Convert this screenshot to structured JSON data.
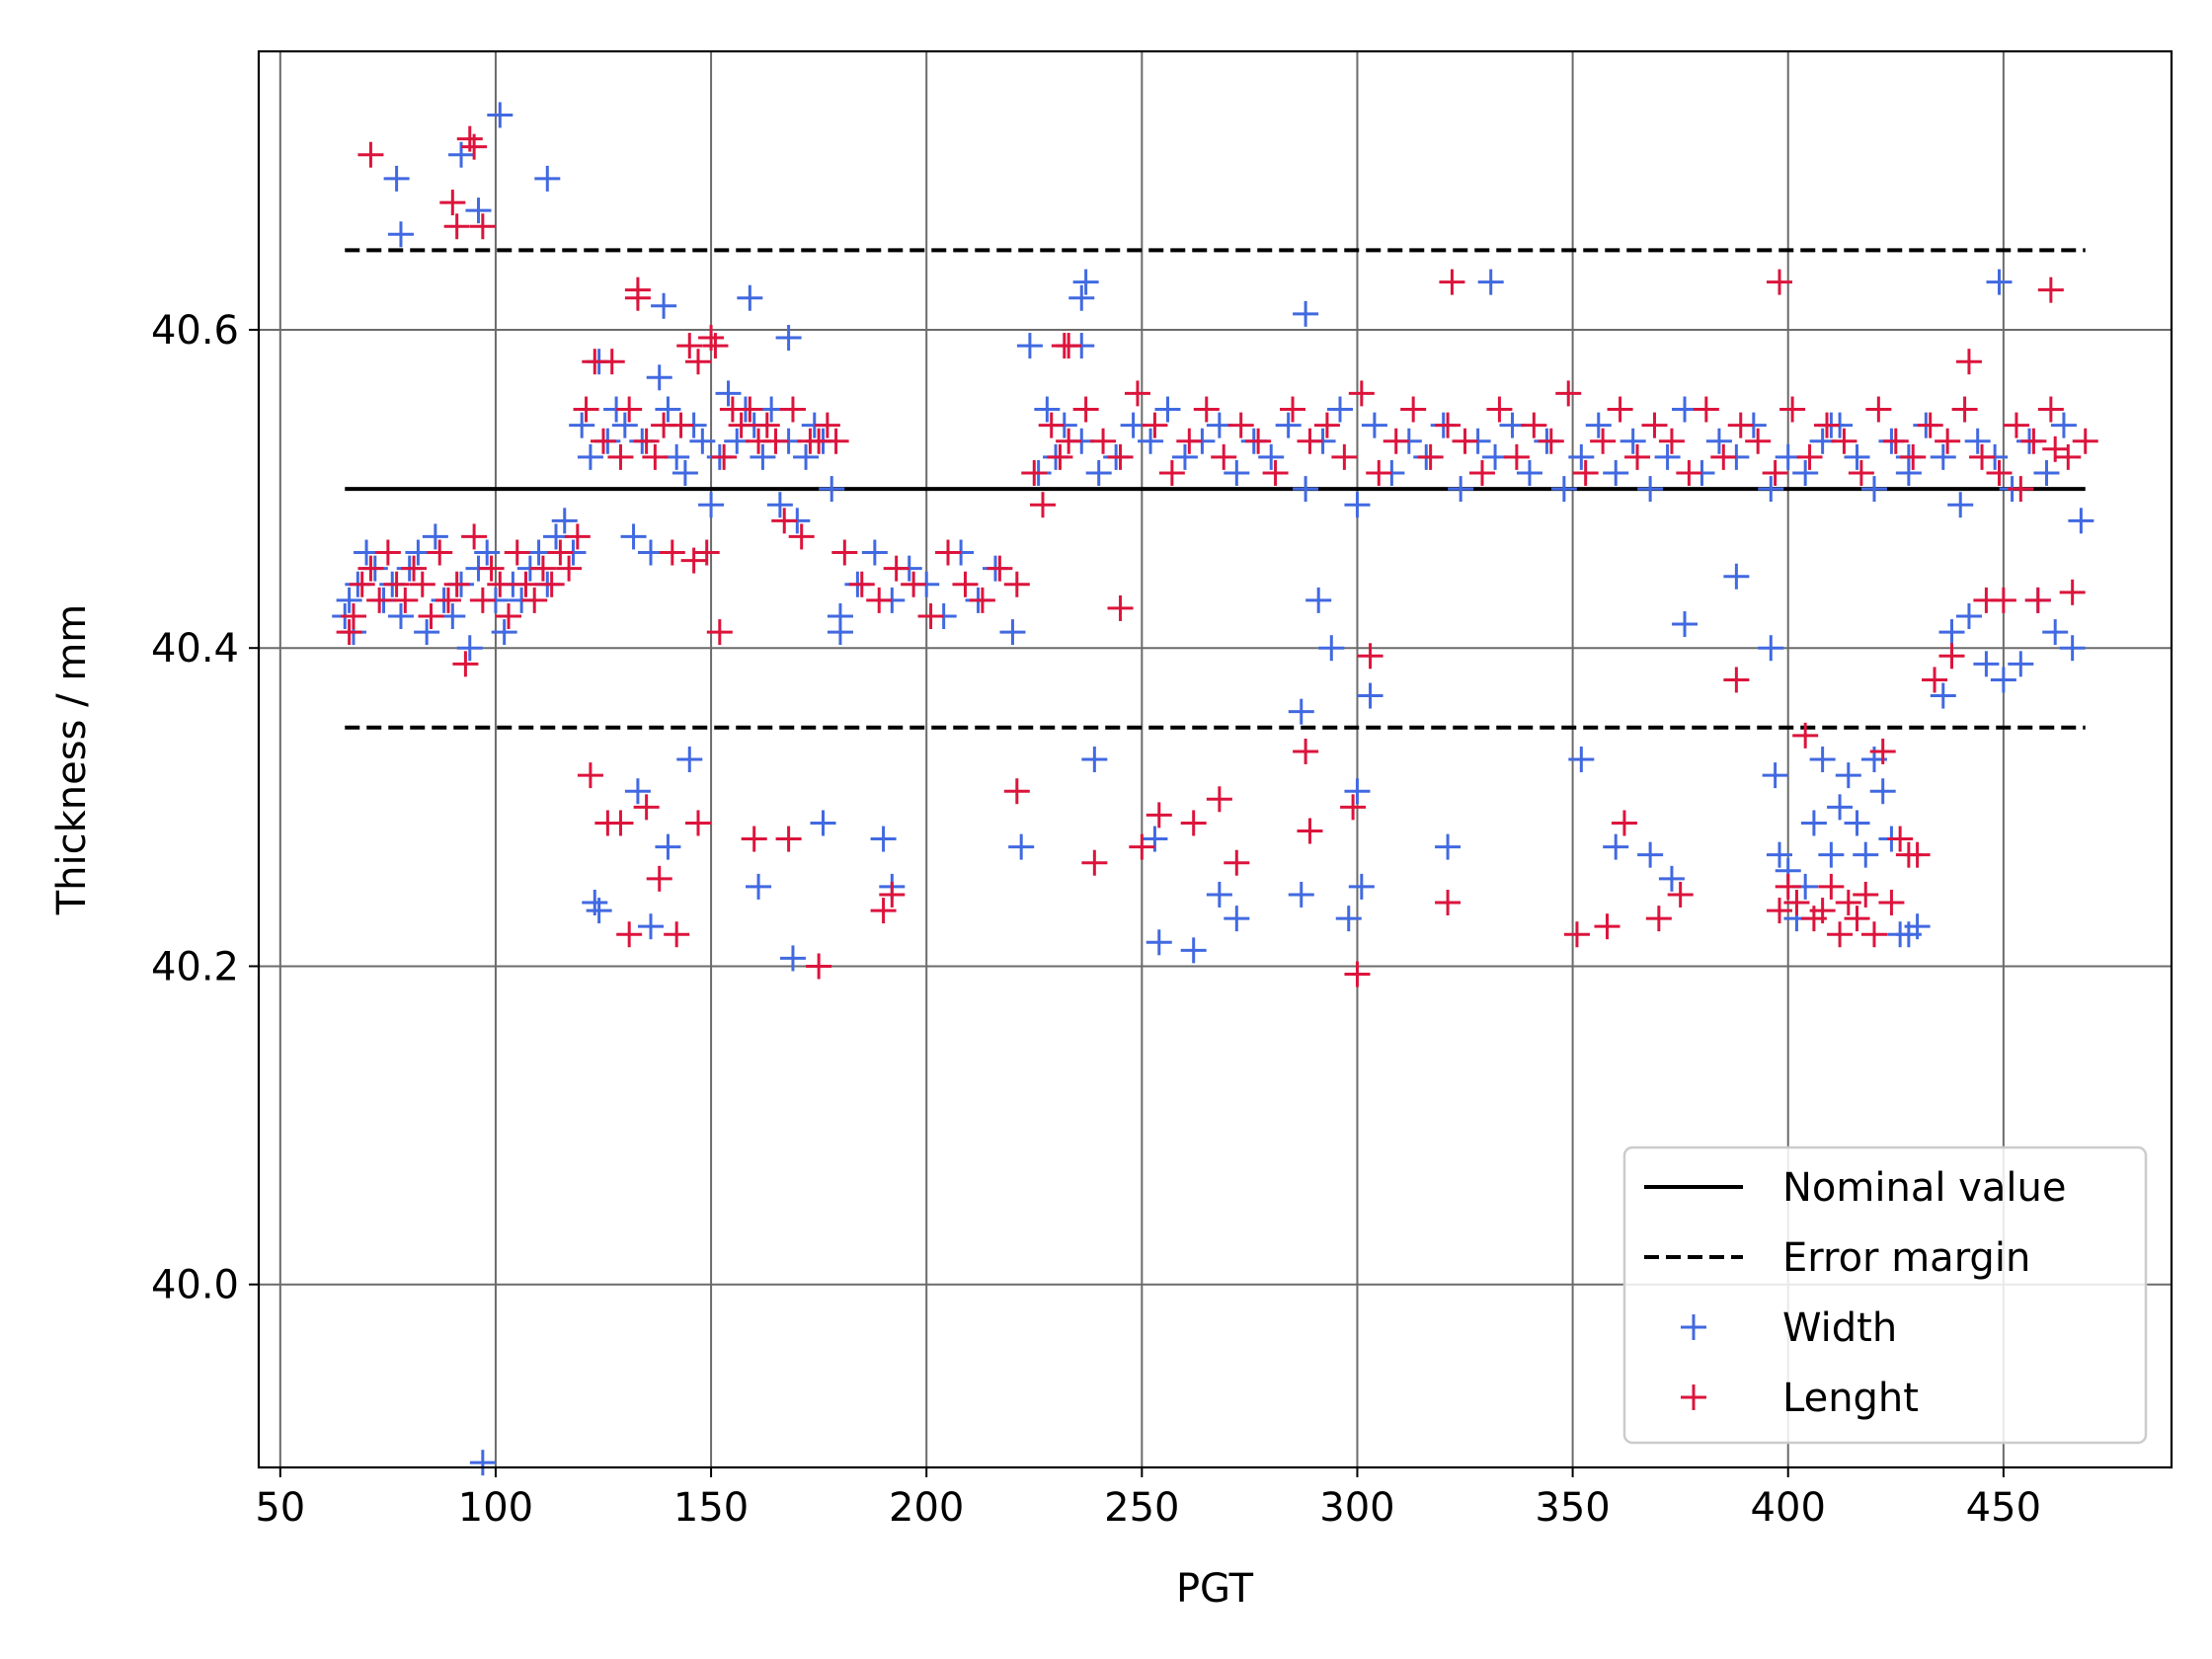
{
  "chart_data": {
    "type": "scatter",
    "title": "",
    "xlabel": "PGT",
    "ylabel": "Thickness / mm",
    "xlim": [
      45,
      489
    ],
    "ylim": [
      39.885,
      40.775
    ],
    "xticks": [
      50,
      100,
      150,
      200,
      250,
      300,
      350,
      400,
      450
    ],
    "xtick_labels": [
      "50",
      "100",
      "150",
      "200",
      "250",
      "300",
      "350",
      "400",
      "450"
    ],
    "yticks": [
      40.0,
      40.2,
      40.4,
      40.6
    ],
    "ytick_labels": [
      "40.0",
      "40.2",
      "40.4",
      "40.6"
    ],
    "grid": true,
    "legend_position": "lower-right",
    "lines": [
      {
        "name": "Nominal value",
        "style": "solid",
        "color": "#000000",
        "x": [
          65,
          469
        ],
        "y": [
          40.5,
          40.5
        ]
      },
      {
        "name": "Error margin",
        "style": "dashed",
        "color": "#000000",
        "x": [
          65,
          469
        ],
        "y": [
          40.65,
          40.65
        ]
      },
      {
        "name": "",
        "style": "dashed",
        "color": "#000000",
        "x": [
          65,
          469
        ],
        "y": [
          40.35,
          40.35
        ]
      }
    ],
    "series": [
      {
        "name": "Width",
        "marker": "+",
        "color": "#4169e1",
        "x": [
          65,
          66,
          67,
          68,
          70,
          72,
          74,
          76,
          78,
          80,
          82,
          84,
          86,
          88,
          90,
          92,
          94,
          96,
          98,
          100,
          102,
          104,
          106,
          108,
          110,
          112,
          114,
          116,
          118,
          77,
          78,
          92,
          96,
          101,
          112,
          97,
          120,
          122,
          124,
          126,
          128,
          130,
          132,
          134,
          136,
          138,
          140,
          142,
          144,
          146,
          148,
          150,
          152,
          154,
          156,
          158,
          160,
          162,
          164,
          166,
          168,
          170,
          172,
          174,
          176,
          178,
          139,
          159,
          168,
          124,
          136,
          140,
          145,
          123,
          133,
          161,
          169,
          176,
          180,
          184,
          188,
          192,
          196,
          200,
          204,
          208,
          212,
          216,
          220,
          180,
          190,
          192,
          222,
          224,
          226,
          228,
          230,
          232,
          236,
          240,
          244,
          248,
          252,
          256,
          260,
          264,
          268,
          272,
          276,
          280,
          284,
          288,
          292,
          296,
          300,
          304,
          308,
          312,
          316,
          320,
          324,
          328,
          332,
          336,
          340,
          344,
          348,
          352,
          356,
          360,
          364,
          368,
          372,
          376,
          380,
          384,
          388,
          392,
          396,
          400,
          404,
          408,
          412,
          416,
          420,
          424,
          428,
          432,
          436,
          440,
          444,
          448,
          452,
          456,
          460,
          464,
          468,
          236,
          237,
          288,
          331,
          396,
          449,
          236,
          291,
          294,
          303,
          287,
          300,
          239,
          262,
          254,
          253,
          268,
          272,
          287,
          298,
          301,
          321,
          352,
          360,
          368,
          373,
          398,
          400,
          402,
          404,
          406,
          408,
          410,
          412,
          414,
          416,
          418,
          420,
          422,
          424,
          426,
          428,
          430,
          436,
          438,
          442,
          446,
          450,
          454,
          458,
          462,
          466,
          397,
          388,
          376,
          410,
          428
        ],
        "y": [
          40.42,
          40.43,
          40.41,
          40.44,
          40.46,
          40.45,
          40.43,
          40.44,
          40.42,
          40.45,
          40.46,
          40.41,
          40.47,
          40.43,
          40.42,
          40.44,
          40.4,
          40.45,
          40.46,
          40.43,
          40.41,
          40.44,
          40.43,
          40.45,
          40.46,
          40.44,
          40.47,
          40.48,
          40.46,
          40.695,
          40.66,
          40.71,
          40.675,
          40.735,
          40.695,
          39.888,
          40.54,
          40.52,
          40.58,
          40.53,
          40.55,
          40.54,
          40.47,
          40.53,
          40.46,
          40.57,
          40.55,
          40.52,
          40.51,
          40.54,
          40.53,
          40.49,
          40.52,
          40.56,
          40.53,
          40.55,
          40.54,
          40.52,
          40.55,
          40.49,
          40.53,
          40.48,
          40.52,
          40.54,
          40.53,
          40.5,
          40.615,
          40.62,
          40.595,
          40.235,
          40.225,
          40.275,
          40.33,
          40.24,
          40.31,
          40.25,
          40.205,
          40.29,
          40.42,
          40.44,
          40.46,
          40.43,
          40.45,
          40.44,
          40.42,
          40.46,
          40.43,
          40.45,
          40.41,
          40.41,
          40.28,
          40.25,
          40.275,
          40.59,
          40.51,
          40.55,
          40.52,
          40.54,
          40.53,
          40.51,
          40.52,
          40.54,
          40.53,
          40.55,
          40.52,
          40.53,
          40.54,
          40.51,
          40.53,
          40.52,
          40.54,
          40.5,
          40.53,
          40.55,
          40.49,
          40.54,
          40.51,
          40.53,
          40.52,
          40.54,
          40.5,
          40.53,
          40.52,
          40.54,
          40.51,
          40.53,
          40.5,
          40.52,
          40.54,
          40.51,
          40.53,
          40.5,
          40.52,
          40.55,
          40.51,
          40.53,
          40.52,
          40.54,
          40.5,
          40.52,
          40.51,
          40.53,
          40.54,
          40.52,
          40.5,
          40.53,
          40.51,
          40.54,
          40.52,
          40.49,
          40.53,
          40.52,
          40.5,
          40.53,
          40.51,
          40.54,
          40.48,
          40.62,
          40.63,
          40.61,
          40.63,
          40.4,
          40.63,
          40.59,
          40.43,
          40.4,
          40.37,
          40.36,
          40.31,
          40.33,
          40.21,
          40.215,
          40.28,
          40.245,
          40.23,
          40.245,
          40.23,
          40.25,
          40.275,
          40.33,
          40.275,
          40.27,
          40.255,
          40.27,
          40.26,
          40.23,
          40.25,
          40.29,
          40.33,
          40.27,
          40.3,
          40.32,
          40.29,
          40.27,
          40.33,
          40.31,
          40.28,
          40.22,
          40.22,
          40.225,
          40.37,
          40.41,
          40.42,
          40.39,
          40.38,
          40.39,
          40.43,
          40.41,
          40.4,
          40.32,
          40.445,
          40.415,
          40.54,
          40.52
        ]
      },
      {
        "name": "Lenght",
        "marker": "+",
        "color": "#dc143c",
        "x": [
          66,
          67,
          69,
          71,
          73,
          75,
          77,
          79,
          81,
          83,
          85,
          87,
          89,
          91,
          93,
          95,
          97,
          99,
          101,
          103,
          105,
          107,
          109,
          111,
          113,
          115,
          117,
          119,
          71,
          90,
          91,
          95,
          97,
          94,
          121,
          123,
          125,
          127,
          129,
          131,
          133,
          135,
          137,
          139,
          141,
          143,
          145,
          147,
          149,
          151,
          153,
          155,
          157,
          159,
          161,
          163,
          165,
          167,
          169,
          171,
          173,
          175,
          177,
          179,
          133,
          150,
          146,
          152,
          122,
          126,
          129,
          131,
          135,
          138,
          142,
          147,
          160,
          168,
          175,
          190,
          192,
          181,
          185,
          189,
          193,
          197,
          201,
          205,
          209,
          213,
          217,
          221,
          221,
          225,
          227,
          229,
          231,
          233,
          237,
          241,
          245,
          249,
          253,
          257,
          261,
          265,
          269,
          273,
          277,
          281,
          285,
          289,
          293,
          297,
          301,
          305,
          309,
          313,
          317,
          321,
          325,
          329,
          333,
          337,
          341,
          345,
          349,
          353,
          357,
          361,
          365,
          369,
          373,
          377,
          381,
          385,
          389,
          393,
          397,
          401,
          405,
          409,
          413,
          417,
          421,
          425,
          429,
          433,
          437,
          441,
          445,
          449,
          453,
          457,
          461,
          465,
          469,
          322,
          398,
          461,
          232,
          233,
          288,
          303,
          245,
          239,
          250,
          254,
          262,
          268,
          272,
          289,
          299,
          300,
          321,
          351,
          358,
          362,
          370,
          375,
          388,
          398,
          400,
          402,
          404,
          406,
          408,
          410,
          412,
          414,
          416,
          418,
          420,
          422,
          424,
          426,
          428,
          430,
          434,
          438,
          442,
          446,
          450,
          454,
          458,
          462,
          466
        ],
        "y": [
          40.41,
          40.42,
          40.44,
          40.45,
          40.43,
          40.46,
          40.44,
          40.43,
          40.45,
          40.44,
          40.42,
          40.46,
          40.43,
          40.44,
          40.39,
          40.47,
          40.43,
          40.45,
          40.44,
          40.42,
          40.46,
          40.44,
          40.43,
          40.45,
          40.44,
          40.46,
          40.45,
          40.47,
          40.71,
          40.68,
          40.665,
          40.715,
          40.665,
          40.72,
          40.55,
          40.58,
          40.53,
          40.58,
          40.52,
          40.55,
          40.62,
          40.53,
          40.52,
          40.54,
          40.46,
          40.54,
          40.59,
          40.58,
          40.46,
          40.59,
          40.52,
          40.55,
          40.54,
          40.55,
          40.53,
          40.54,
          40.53,
          40.48,
          40.55,
          40.47,
          40.53,
          40.53,
          40.54,
          40.53,
          40.625,
          40.595,
          40.455,
          40.41,
          40.32,
          40.29,
          40.29,
          40.22,
          40.3,
          40.255,
          40.22,
          40.29,
          40.28,
          40.28,
          40.2,
          40.235,
          40.245,
          40.46,
          40.44,
          40.43,
          40.45,
          40.44,
          40.42,
          40.46,
          40.44,
          40.43,
          40.45,
          40.44,
          40.31,
          40.51,
          40.49,
          40.54,
          40.52,
          40.53,
          40.55,
          40.53,
          40.52,
          40.56,
          40.54,
          40.51,
          40.53,
          40.55,
          40.52,
          40.54,
          40.53,
          40.51,
          40.55,
          40.53,
          40.54,
          40.52,
          40.56,
          40.51,
          40.53,
          40.55,
          40.52,
          40.54,
          40.53,
          40.51,
          40.55,
          40.52,
          40.54,
          40.53,
          40.56,
          40.51,
          40.53,
          40.55,
          40.52,
          40.54,
          40.53,
          40.51,
          40.55,
          40.52,
          40.54,
          40.53,
          40.51,
          40.55,
          40.52,
          40.54,
          40.53,
          40.51,
          40.55,
          40.53,
          40.52,
          40.54,
          40.53,
          40.55,
          40.52,
          40.51,
          40.54,
          40.53,
          40.55,
          40.52,
          40.53,
          40.63,
          40.63,
          40.625,
          40.59,
          40.59,
          40.335,
          40.395,
          40.425,
          40.265,
          40.275,
          40.295,
          40.29,
          40.305,
          40.265,
          40.285,
          40.3,
          40.195,
          40.24,
          40.22,
          40.225,
          40.29,
          40.23,
          40.245,
          40.38,
          40.235,
          40.25,
          40.24,
          40.345,
          40.23,
          40.235,
          40.25,
          40.22,
          40.24,
          40.23,
          40.245,
          40.22,
          40.335,
          40.24,
          40.28,
          40.27,
          40.27,
          40.38,
          40.395,
          40.58,
          40.43,
          40.43,
          40.5,
          40.43,
          40.525,
          40.435
        ]
      }
    ]
  }
}
